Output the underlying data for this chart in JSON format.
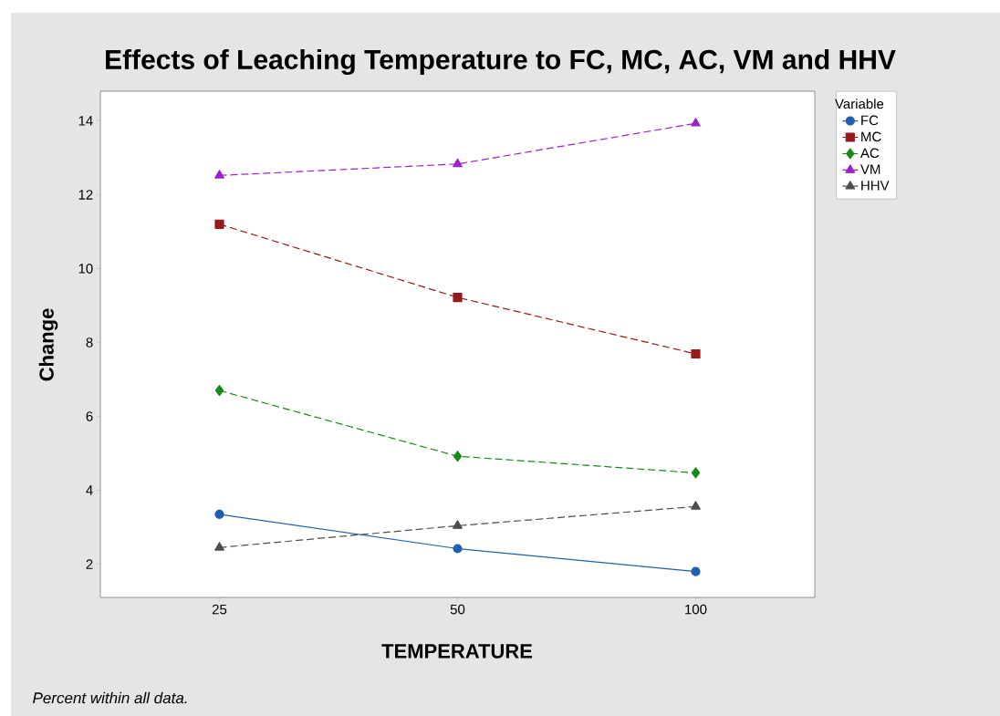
{
  "chart_data": {
    "type": "line",
    "title": "Effects of Leaching Temperature to FC, MC, AC, VM and HHV",
    "xlabel": "TEMPERATURE",
    "ylabel": "Change",
    "legend_title": "Variable",
    "annotations": [
      "Percent within all data."
    ],
    "categories": [
      "25",
      "50",
      "100"
    ],
    "series": [
      {
        "name": "FC",
        "color": "#1f5fae",
        "marker": "circle",
        "line_style": "solid",
        "values": [
          3.35,
          2.42,
          1.8
        ]
      },
      {
        "name": "MC",
        "color": "#961b1b",
        "marker": "square",
        "line_style": "dashed",
        "values": [
          11.2,
          9.22,
          7.69
        ]
      },
      {
        "name": "AC",
        "color": "#168a16",
        "marker": "diamond",
        "line_style": "dashed",
        "values": [
          6.7,
          4.92,
          4.47
        ]
      },
      {
        "name": "VM",
        "color": "#9b22c8",
        "marker": "triangle",
        "line_style": "dashed",
        "values": [
          12.52,
          12.83,
          13.93
        ]
      },
      {
        "name": "HHV",
        "color": "#4d4d4d",
        "marker": "triangle",
        "line_style": "dashed",
        "values": [
          2.45,
          3.04,
          3.56
        ]
      }
    ],
    "ylim": [
      1.1,
      14.8
    ],
    "yticks": [
      2,
      4,
      6,
      8,
      10,
      12,
      14
    ],
    "grid": false,
    "legend": "right"
  }
}
